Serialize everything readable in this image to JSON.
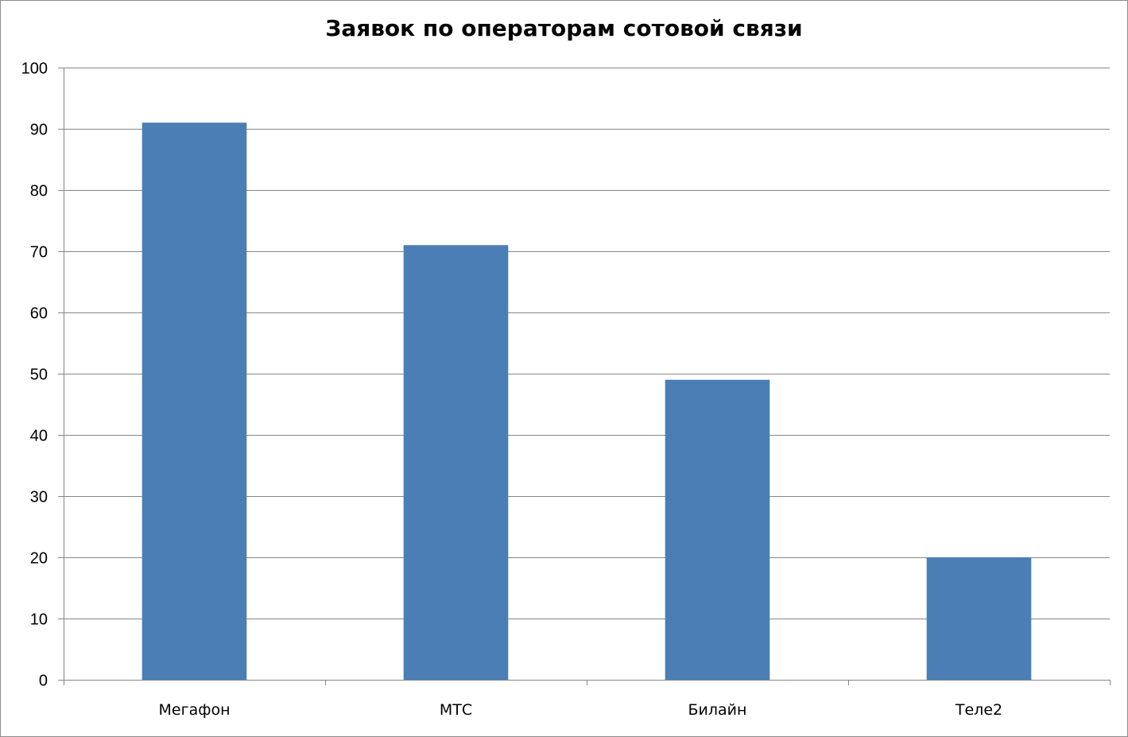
{
  "chart_data": {
    "type": "bar",
    "title": "Заявок по операторам сотовой связи",
    "categories": [
      "Мегафон",
      "МТС",
      "Билайн",
      "Теле2"
    ],
    "values": [
      91,
      71,
      49,
      20
    ],
    "ylim": [
      0,
      100
    ],
    "yticks": [
      0,
      10,
      20,
      30,
      40,
      50,
      60,
      70,
      80,
      90,
      100
    ],
    "grid": true,
    "legend": "none",
    "bar_color": "#4a7eb5",
    "grid_color": "#868686"
  }
}
